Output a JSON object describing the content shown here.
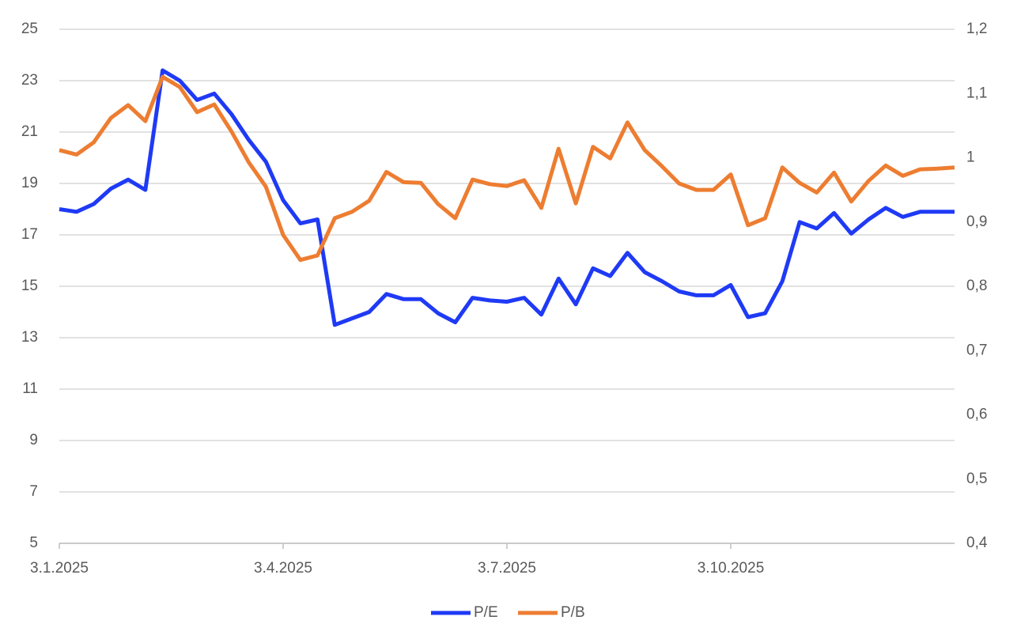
{
  "chart_data": {
    "type": "line",
    "categories": [
      "3.1.2025",
      null,
      null,
      null,
      null,
      null,
      null,
      null,
      null,
      null,
      null,
      null,
      null,
      "3.4.2025",
      null,
      null,
      null,
      null,
      null,
      null,
      null,
      null,
      null,
      null,
      null,
      null,
      "3.7.2025",
      null,
      null,
      null,
      null,
      null,
      null,
      null,
      null,
      null,
      null,
      null,
      null,
      "3.10.2025",
      null,
      null,
      null,
      null,
      null,
      null,
      null,
      null,
      null,
      null,
      null,
      null,
      null
    ],
    "series": [
      {
        "name": "P/E",
        "color": "#1f3af5",
        "axis": "y",
        "values": [
          18.0,
          17.9,
          18.2,
          18.8,
          19.15,
          18.75,
          23.4,
          23.0,
          22.25,
          22.5,
          21.7,
          20.7,
          19.85,
          18.35,
          17.45,
          17.6,
          13.5,
          13.75,
          14.0,
          14.7,
          14.5,
          14.5,
          13.95,
          13.6,
          14.55,
          14.45,
          14.4,
          14.55,
          13.9,
          15.3,
          14.3,
          15.7,
          15.4,
          16.3,
          15.55,
          15.2,
          14.8,
          14.65,
          14.65,
          15.05,
          13.8,
          13.95,
          15.2,
          17.5,
          17.25,
          17.85,
          17.05,
          17.6,
          18.05,
          17.7,
          17.9,
          17.9,
          17.9
        ]
      },
      {
        "name": "P/B",
        "color": "#ed7d31",
        "axis": "y2",
        "values": [
          1.012,
          1.005,
          1.024,
          1.062,
          1.082,
          1.057,
          1.126,
          1.11,
          1.071,
          1.083,
          1.041,
          0.993,
          0.955,
          0.88,
          0.841,
          0.848,
          0.906,
          0.916,
          0.933,
          0.978,
          0.962,
          0.961,
          0.928,
          0.906,
          0.966,
          0.959,
          0.956,
          0.965,
          0.922,
          1.014,
          0.929,
          1.017,
          0.999,
          1.055,
          1.012,
          0.987,
          0.96,
          0.95,
          0.95,
          0.974,
          0.895,
          0.906,
          0.985,
          0.961,
          0.946,
          0.977,
          0.932,
          0.964,
          0.988,
          0.972,
          0.982,
          0.983,
          0.985
        ]
      }
    ],
    "ylim": [
      5,
      25
    ],
    "yticks": [
      5,
      7,
      9,
      11,
      13,
      15,
      17,
      19,
      21,
      23,
      25
    ],
    "y2lim": [
      0.4,
      1.2
    ],
    "y2ticks": [
      {
        "value": 0.4,
        "label": "0,4"
      },
      {
        "value": 0.5,
        "label": "0,5"
      },
      {
        "value": 0.6,
        "label": "0,6"
      },
      {
        "value": 0.7,
        "label": "0,7"
      },
      {
        "value": 0.8,
        "label": "0,8"
      },
      {
        "value": 0.9,
        "label": "0,9"
      },
      1,
      {
        "value": 1.1,
        "label": "1,1"
      },
      {
        "value": 1.2,
        "label": "1,2"
      }
    ],
    "grid": true,
    "legend": "bottom"
  }
}
